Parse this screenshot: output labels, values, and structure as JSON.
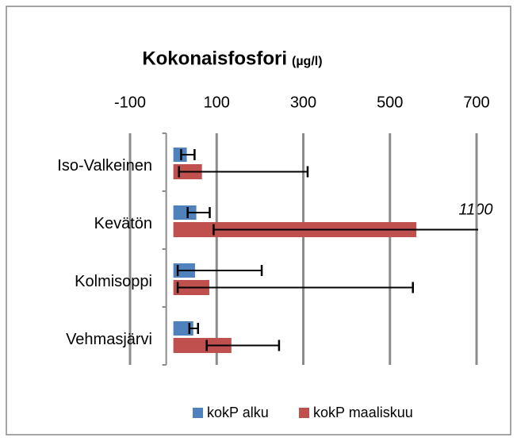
{
  "chart_data": {
    "type": "bar",
    "orientation": "horizontal",
    "title": "Kokonaisfosfori",
    "title_unit": "(µg/l)",
    "categories": [
      "Iso-Valkeinen",
      "Kevätön",
      "Kolmisoppi",
      "Vehmasjärvi"
    ],
    "series": [
      {
        "name": "kokP alku",
        "color": "#4f81bd",
        "values": [
          31,
          53,
          50,
          46
        ],
        "error_low": [
          13,
          20,
          40,
          9
        ],
        "error_high": [
          18,
          31,
          154,
          11
        ]
      },
      {
        "name": "kokP maaliskuu",
        "color": "#c0504d",
        "values": [
          66,
          561,
          83,
          134
        ],
        "error_low": [
          53,
          468,
          73,
          57
        ],
        "error_high": [
          244,
          539,
          470,
          110
        ]
      }
    ],
    "xlim": [
      -100,
      700
    ],
    "xticks": [
      -100,
      100,
      300,
      500,
      700
    ],
    "grid": true,
    "legend": "bottom",
    "annotation": "1100"
  }
}
